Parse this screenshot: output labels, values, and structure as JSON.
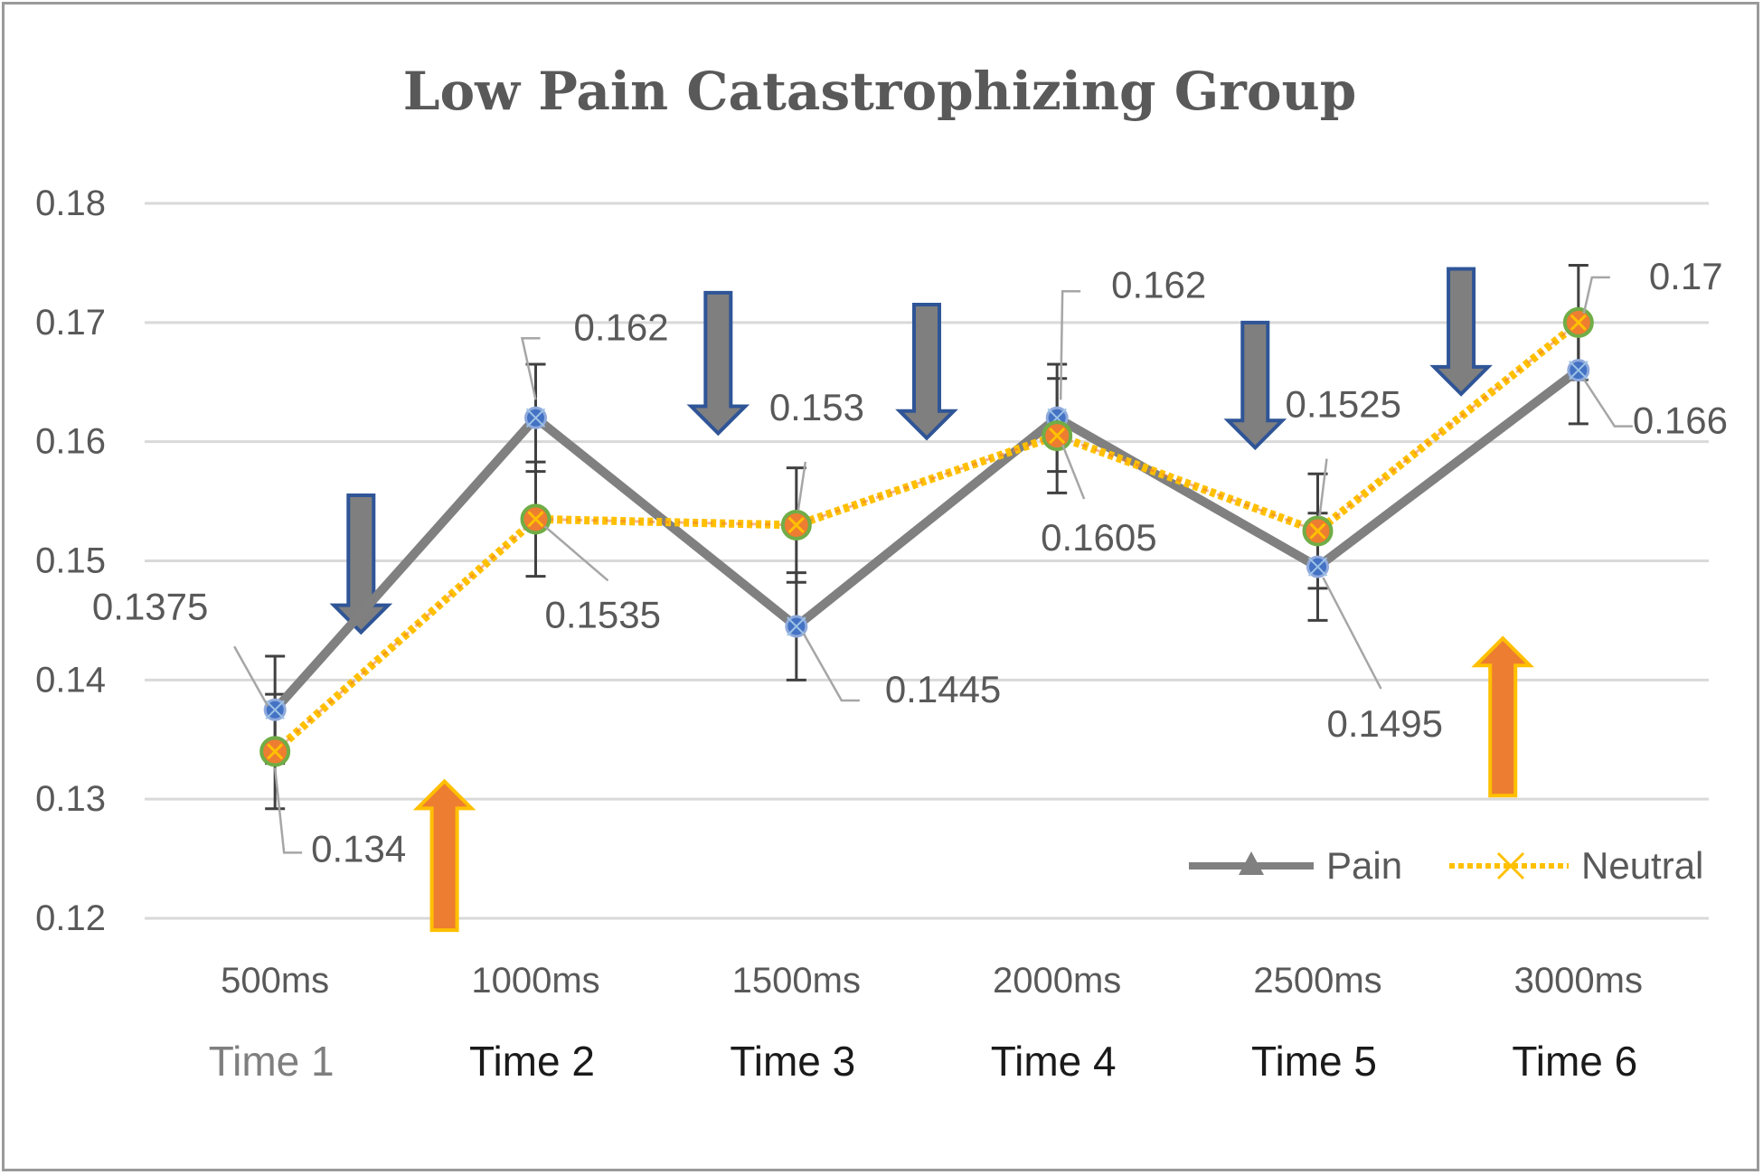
{
  "chart_data": {
    "type": "line",
    "title": "Low Pain Catastrophizing Group",
    "categories": [
      "500ms",
      "1000ms",
      "1500ms",
      "2000ms",
      "2500ms",
      "3000ms"
    ],
    "time_labels": [
      "Time 1",
      "Time 2",
      "Time 3",
      "Time 4",
      "Time 5",
      "Time 6"
    ],
    "ylim": [
      0.12,
      0.18
    ],
    "yticks": [
      "0.12",
      "0.13",
      "0.14",
      "0.15",
      "0.16",
      "0.17",
      "0.18"
    ],
    "grid": true,
    "legend_position": "bottom-right",
    "series": [
      {
        "name": "Pain",
        "values": [
          0.1375,
          0.162,
          0.1445,
          0.162,
          0.1495,
          0.166
        ],
        "labels": [
          "0.1375",
          "0.162",
          "0.1445",
          "0.162",
          "0.1495",
          "0.166"
        ],
        "error": [
          0.0045,
          0.0045,
          0.0045,
          0.0045,
          0.0045,
          0.0045
        ],
        "color": "#808080",
        "marker_color": "#4472c4"
      },
      {
        "name": "Neutral",
        "values": [
          0.134,
          0.1535,
          0.153,
          0.1605,
          0.1525,
          0.17
        ],
        "labels": [
          "0.134",
          "0.1535",
          "0.153",
          "0.1605",
          "0.1525",
          "0.17"
        ],
        "error": [
          0.0048,
          0.0048,
          0.0048,
          0.0048,
          0.0048,
          0.0048
        ],
        "color": "#ffc000",
        "marker_color": "#ed7d31"
      }
    ],
    "annotation_arrows": [
      {
        "between": "Time 1-2",
        "direction": "down",
        "color": "#7f7f7f"
      },
      {
        "between": "Time 1-2",
        "direction": "up",
        "color": "#ed7d31"
      },
      {
        "between": "Time 2-3",
        "direction": "down",
        "color": "#7f7f7f"
      },
      {
        "between": "Time 3-4",
        "direction": "down",
        "color": "#7f7f7f"
      },
      {
        "between": "Time 4-5",
        "direction": "down",
        "color": "#7f7f7f"
      },
      {
        "between": "Time 5-6",
        "direction": "down",
        "color": "#7f7f7f"
      },
      {
        "between": "Time 5-6",
        "direction": "up",
        "color": "#ed7d31"
      }
    ]
  }
}
